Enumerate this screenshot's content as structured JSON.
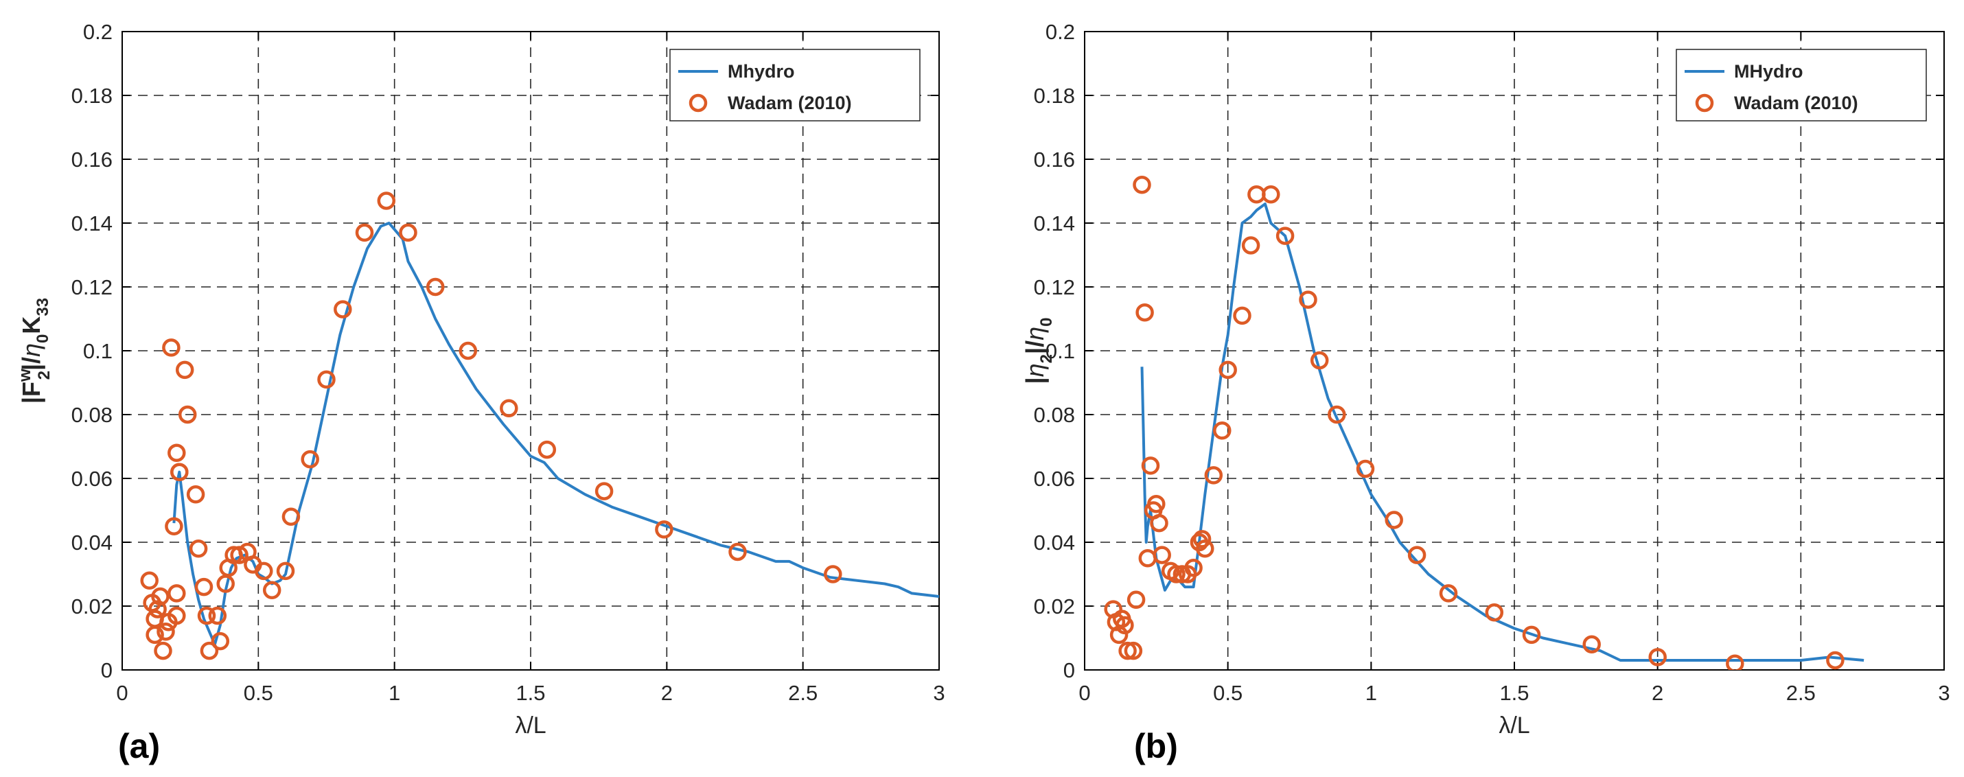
{
  "figure": {
    "panels": [
      {
        "id": "a",
        "label": "(a)",
        "xlabel": "λ/L",
        "ylabel_parts": {
          "F": "|F",
          "sup": "w",
          "sub2": "2",
          "mid": "|/",
          "eta": "η",
          "sub0": "0",
          "K": "K",
          "sub33": "33"
        },
        "xticks": [
          "0",
          "0.5",
          "1",
          "1.5",
          "2",
          "2.5",
          "3"
        ],
        "yticks": [
          "0",
          "0.02",
          "0.04",
          "0.06",
          "0.08",
          "0.1",
          "0.12",
          "0.14",
          "0.16",
          "0.18",
          "0.2"
        ],
        "legend": {
          "line_label": "Mhydro",
          "marker_label": "Wadam (2010)"
        }
      },
      {
        "id": "b",
        "label": "(b)",
        "xlabel": "λ/L",
        "ylabel_parts": {
          "bar1": "|",
          "eta": "η",
          "sub2": "2",
          "mid": "|/",
          "eta2": "η",
          "sub0": "0"
        },
        "xticks": [
          "0",
          "0.5",
          "1",
          "1.5",
          "2",
          "2.5",
          "3"
        ],
        "yticks": [
          "0",
          "0.02",
          "0.04",
          "0.06",
          "0.08",
          "0.1",
          "0.12",
          "0.14",
          "0.16",
          "0.18",
          "0.2"
        ],
        "legend": {
          "line_label": "MHydro",
          "marker_label": "Wadam (2010)"
        }
      }
    ]
  },
  "colors": {
    "line": "#2c7fc4",
    "marker": "#dd5b26",
    "grid": "#262626",
    "axis": "#000000"
  },
  "chart_data": [
    {
      "type": "line",
      "title": "",
      "xlabel": "λ/L",
      "ylabel": "|F2w|/η0 K33",
      "xlim": [
        0,
        3
      ],
      "ylim": [
        0,
        0.2
      ],
      "grid": true,
      "legend_position": "top-right",
      "series": [
        {
          "name": "Mhydro",
          "kind": "line",
          "x": [
            0.19,
            0.2,
            0.21,
            0.22,
            0.24,
            0.26,
            0.28,
            0.3,
            0.32,
            0.34,
            0.36,
            0.38,
            0.4,
            0.42,
            0.45,
            0.48,
            0.5,
            0.52,
            0.55,
            0.58,
            0.6,
            0.62,
            0.65,
            0.7,
            0.75,
            0.8,
            0.85,
            0.9,
            0.95,
            0.98,
            1.0,
            1.03,
            1.05,
            1.1,
            1.15,
            1.2,
            1.25,
            1.3,
            1.4,
            1.5,
            1.55,
            1.6,
            1.7,
            1.8,
            1.9,
            2.0,
            2.1,
            2.2,
            2.3,
            2.4,
            2.45,
            2.5,
            2.6,
            2.7,
            2.8,
            2.85,
            2.9,
            3.0
          ],
          "y": [
            0.046,
            0.058,
            0.062,
            0.055,
            0.04,
            0.03,
            0.022,
            0.016,
            0.012,
            0.008,
            0.014,
            0.025,
            0.032,
            0.035,
            0.036,
            0.034,
            0.03,
            0.029,
            0.027,
            0.028,
            0.03,
            0.038,
            0.05,
            0.065,
            0.085,
            0.105,
            0.12,
            0.132,
            0.139,
            0.14,
            0.138,
            0.135,
            0.128,
            0.12,
            0.11,
            0.102,
            0.095,
            0.088,
            0.077,
            0.067,
            0.065,
            0.06,
            0.055,
            0.051,
            0.048,
            0.045,
            0.042,
            0.039,
            0.037,
            0.034,
            0.034,
            0.032,
            0.029,
            0.028,
            0.027,
            0.026,
            0.024,
            0.023
          ]
        },
        {
          "name": "Wadam (2010)",
          "kind": "scatter",
          "x": [
            0.1,
            0.11,
            0.12,
            0.12,
            0.13,
            0.14,
            0.15,
            0.16,
            0.17,
            0.18,
            0.19,
            0.2,
            0.2,
            0.2,
            0.21,
            0.21,
            0.23,
            0.24,
            0.27,
            0.28,
            0.3,
            0.31,
            0.32,
            0.35,
            0.36,
            0.38,
            0.39,
            0.41,
            0.43,
            0.46,
            0.48,
            0.52,
            0.55,
            0.6,
            0.62,
            0.69,
            0.75,
            0.81,
            0.89,
            0.97,
            1.05,
            1.15,
            1.27,
            1.42,
            1.56,
            1.77,
            1.99,
            2.26,
            2.61
          ],
          "y": [
            0.028,
            0.021,
            0.016,
            0.011,
            0.019,
            0.023,
            0.006,
            0.012,
            0.015,
            0.101,
            0.045,
            0.024,
            0.068,
            0.017,
            0.062,
            0.062,
            0.094,
            0.08,
            0.055,
            0.038,
            0.026,
            0.017,
            0.006,
            0.017,
            0.009,
            0.027,
            0.032,
            0.036,
            0.036,
            0.037,
            0.033,
            0.031,
            0.025,
            0.031,
            0.048,
            0.066,
            0.091,
            0.113,
            0.137,
            0.147,
            0.137,
            0.12,
            0.1,
            0.082,
            0.069,
            0.056,
            0.044,
            0.037,
            0.03
          ]
        }
      ]
    },
    {
      "type": "line",
      "title": "",
      "xlabel": "λ/L",
      "ylabel": "|η2|/η0",
      "xlim": [
        0,
        3
      ],
      "ylim": [
        0,
        0.2
      ],
      "grid": true,
      "legend_position": "top-right",
      "series": [
        {
          "name": "MHydro",
          "kind": "line",
          "x": [
            0.2,
            0.205,
            0.21,
            0.215,
            0.22,
            0.23,
            0.25,
            0.28,
            0.3,
            0.33,
            0.35,
            0.38,
            0.4,
            0.42,
            0.45,
            0.48,
            0.5,
            0.52,
            0.55,
            0.58,
            0.6,
            0.63,
            0.65,
            0.7,
            0.75,
            0.8,
            0.85,
            0.9,
            0.95,
            1.0,
            1.05,
            1.1,
            1.2,
            1.3,
            1.4,
            1.5,
            1.6,
            1.7,
            1.8,
            1.87,
            1.9,
            2.0,
            2.2,
            2.4,
            2.5,
            2.6,
            2.72
          ],
          "y": [
            0.095,
            0.075,
            0.055,
            0.04,
            0.045,
            0.05,
            0.035,
            0.025,
            0.028,
            0.028,
            0.026,
            0.026,
            0.04,
            0.055,
            0.075,
            0.095,
            0.105,
            0.12,
            0.14,
            0.142,
            0.144,
            0.146,
            0.14,
            0.136,
            0.12,
            0.1,
            0.085,
            0.075,
            0.065,
            0.055,
            0.048,
            0.04,
            0.03,
            0.023,
            0.017,
            0.013,
            0.01,
            0.008,
            0.006,
            0.003,
            0.003,
            0.003,
            0.003,
            0.003,
            0.003,
            0.004,
            0.003
          ]
        },
        {
          "name": "Wadam (2010)",
          "kind": "scatter",
          "x": [
            0.1,
            0.11,
            0.12,
            0.13,
            0.14,
            0.15,
            0.17,
            0.18,
            0.2,
            0.21,
            0.22,
            0.23,
            0.24,
            0.25,
            0.26,
            0.27,
            0.3,
            0.32,
            0.34,
            0.36,
            0.38,
            0.4,
            0.41,
            0.42,
            0.45,
            0.48,
            0.5,
            0.55,
            0.58,
            0.6,
            0.65,
            0.7,
            0.78,
            0.82,
            0.88,
            0.98,
            1.08,
            1.16,
            1.27,
            1.43,
            1.56,
            1.77,
            2.0,
            2.27,
            2.62
          ],
          "y": [
            0.019,
            0.015,
            0.011,
            0.016,
            0.014,
            0.006,
            0.006,
            0.022,
            0.152,
            0.112,
            0.035,
            0.064,
            0.05,
            0.052,
            0.046,
            0.036,
            0.031,
            0.03,
            0.03,
            0.03,
            0.032,
            0.04,
            0.041,
            0.038,
            0.061,
            0.075,
            0.094,
            0.111,
            0.133,
            0.149,
            0.149,
            0.136,
            0.116,
            0.097,
            0.08,
            0.063,
            0.047,
            0.036,
            0.024,
            0.018,
            0.011,
            0.008,
            0.004,
            0.002,
            0.003
          ]
        }
      ]
    }
  ]
}
